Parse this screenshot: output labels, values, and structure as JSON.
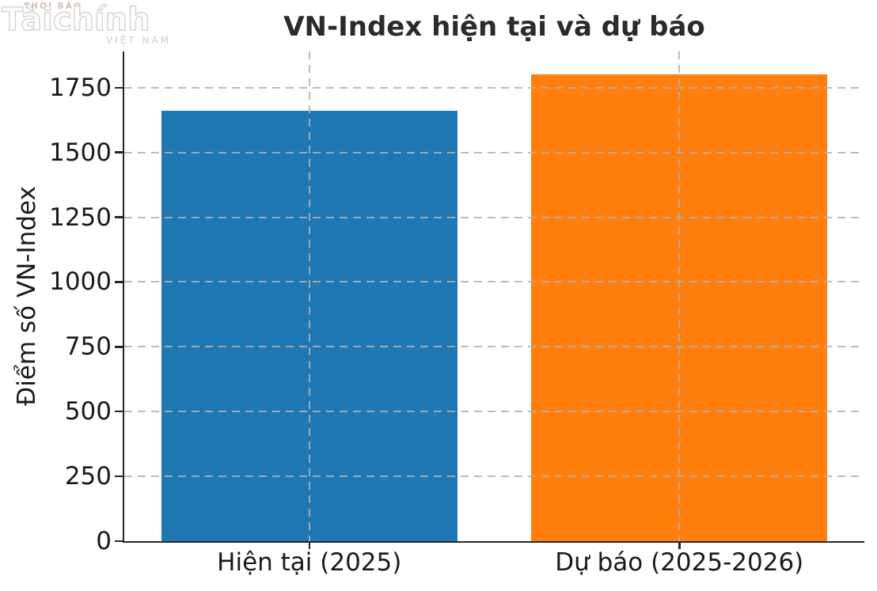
{
  "logo": {
    "top_text": "THỜI BÁO",
    "main_text": "Tàichính",
    "bottom_text": "VIỆT NAM"
  },
  "chart_data": {
    "type": "bar",
    "title": "VN-Index hiện tại và dự báo",
    "xlabel": "",
    "ylabel": "Điểm số VN-Index",
    "categories": [
      "Hiện tại (2025)",
      "Dự báo (2025-2026)"
    ],
    "values": [
      1660,
      1800
    ],
    "bar_colors": [
      "#1f77b4",
      "#ff7f0e"
    ],
    "ylim": [
      0,
      1890
    ],
    "yticks": [
      0,
      250,
      500,
      750,
      1000,
      1250,
      1500,
      1750
    ],
    "grid": "dashed, horizontal at yticks and vertical at bar centers, drawn over bars",
    "legend": "none"
  }
}
